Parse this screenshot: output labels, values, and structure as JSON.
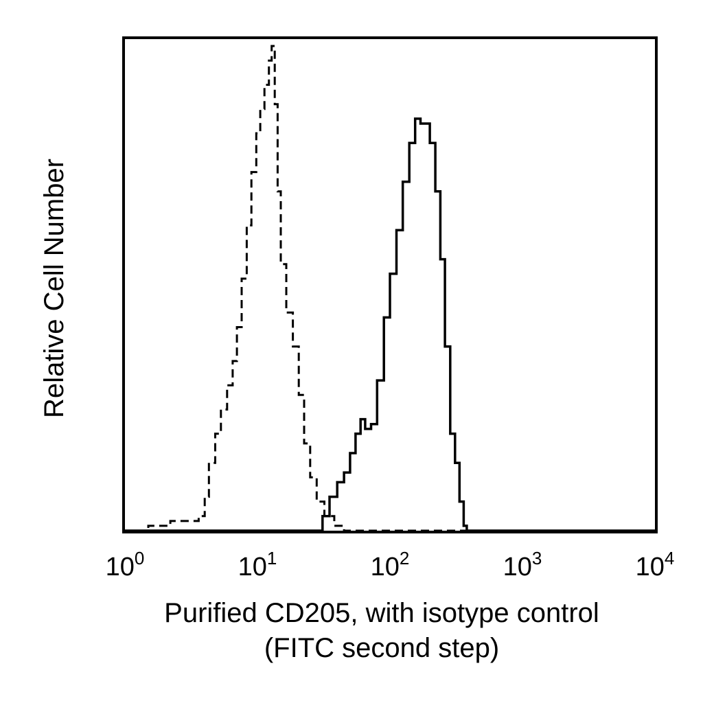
{
  "chart_data": {
    "type": "histogram",
    "x_scale": "log",
    "xlim": [
      1,
      10000
    ],
    "ylim": [
      0,
      100
    ],
    "grid": false,
    "xlabel_lines": [
      "Purified CD205, with isotype control",
      "(FITC second step)"
    ],
    "ylabel": "Relative Cell Number",
    "x_ticks": [
      {
        "value": 1,
        "base": "10",
        "exp": "0"
      },
      {
        "value": 10,
        "base": "10",
        "exp": "1"
      },
      {
        "value": 100,
        "base": "10",
        "exp": "2"
      },
      {
        "value": 1000,
        "base": "10",
        "exp": "3"
      },
      {
        "value": 10000,
        "base": "10",
        "exp": "4"
      }
    ],
    "series": [
      {
        "style": "dashed",
        "points": [
          [
            1.5,
            1
          ],
          [
            2.2,
            2
          ],
          [
            3.0,
            2
          ],
          [
            3.6,
            3
          ],
          [
            4.0,
            7
          ],
          [
            4.3,
            14
          ],
          [
            4.8,
            20
          ],
          [
            5.3,
            25
          ],
          [
            5.9,
            30
          ],
          [
            6.5,
            35
          ],
          [
            7.0,
            42
          ],
          [
            7.6,
            52
          ],
          [
            8.3,
            63
          ],
          [
            9.0,
            74
          ],
          [
            9.8,
            82
          ],
          [
            10.5,
            87
          ],
          [
            11.3,
            92
          ],
          [
            12.2,
            97
          ],
          [
            12.8,
            100
          ],
          [
            13.5,
            88
          ],
          [
            14.2,
            70
          ],
          [
            15.0,
            55
          ],
          [
            16.5,
            45
          ],
          [
            18.5,
            38
          ],
          [
            20.5,
            28
          ],
          [
            22.5,
            18
          ],
          [
            25.0,
            11
          ],
          [
            28.0,
            6
          ],
          [
            32.0,
            3
          ],
          [
            38.0,
            1
          ],
          [
            45.0,
            0
          ]
        ]
      },
      {
        "style": "solid",
        "points": [
          [
            28,
            0
          ],
          [
            31,
            3
          ],
          [
            35,
            7
          ],
          [
            40,
            10
          ],
          [
            45,
            12
          ],
          [
            50,
            16
          ],
          [
            55,
            20
          ],
          [
            60,
            23
          ],
          [
            65,
            21
          ],
          [
            72,
            22
          ],
          [
            80,
            31
          ],
          [
            90,
            44
          ],
          [
            100,
            53
          ],
          [
            112,
            62
          ],
          [
            125,
            72
          ],
          [
            140,
            80
          ],
          [
            155,
            85
          ],
          [
            170,
            84
          ],
          [
            185,
            84
          ],
          [
            200,
            80
          ],
          [
            220,
            70
          ],
          [
            240,
            56
          ],
          [
            260,
            38
          ],
          [
            285,
            20
          ],
          [
            310,
            14
          ],
          [
            335,
            6
          ],
          [
            360,
            1
          ],
          [
            380,
            0
          ]
        ]
      }
    ]
  }
}
